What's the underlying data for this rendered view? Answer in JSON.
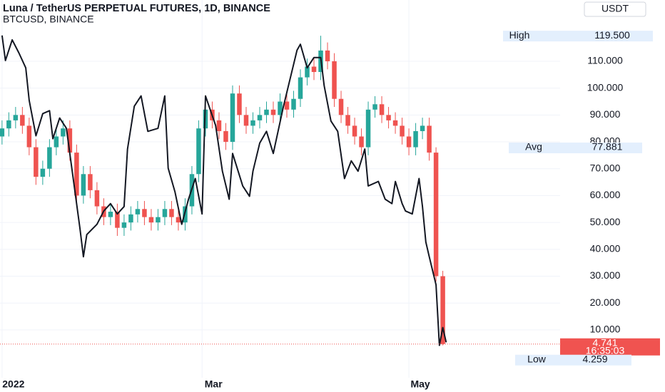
{
  "chart_data": {
    "type": "candlestick",
    "title": "Luna / TetherUS PERPETUAL FUTURES, 1D, BINANCE",
    "subtitle": "BTCUSD, BINANCE",
    "currency": "USDT",
    "x": [
      0,
      2,
      4,
      6,
      8,
      10,
      12,
      14,
      16,
      18,
      20,
      22,
      24,
      26,
      28,
      30,
      32,
      34,
      36,
      38,
      40,
      42,
      44,
      46,
      48,
      50,
      52,
      54,
      56,
      58,
      60,
      62,
      64,
      66,
      68,
      70,
      72,
      74,
      76,
      78,
      80,
      82,
      84,
      86,
      88,
      90,
      92,
      94,
      96,
      98,
      100,
      102,
      104,
      106,
      108,
      110,
      112,
      114,
      116,
      118,
      120,
      122,
      124,
      126,
      128,
      130
    ],
    "open": [
      82,
      85,
      88,
      90,
      86,
      78,
      67,
      70,
      78,
      82,
      85,
      76,
      60,
      68,
      62,
      56,
      52,
      54,
      48,
      50,
      53,
      55,
      52,
      50,
      52,
      55,
      52,
      50,
      56,
      68,
      85,
      92,
      88,
      84,
      80,
      98,
      90,
      86,
      88,
      90,
      92,
      90,
      95,
      92,
      96,
      104,
      108,
      106,
      114,
      110,
      96,
      90,
      86,
      82,
      78,
      92,
      94,
      90,
      88,
      86,
      82,
      78,
      84,
      86,
      76,
      30
    ],
    "high": [
      88,
      91,
      93,
      93,
      89,
      81,
      73,
      81,
      85,
      88,
      88,
      79,
      71,
      71,
      65,
      59,
      57,
      57,
      53,
      56,
      58,
      58,
      55,
      55,
      58,
      58,
      55,
      59,
      71,
      88,
      95,
      95,
      91,
      87,
      101,
      101,
      93,
      91,
      93,
      95,
      95,
      98,
      98,
      99,
      107,
      111,
      111,
      119.5,
      117,
      113,
      99,
      93,
      89,
      85,
      95,
      97,
      97,
      93,
      91,
      89,
      85,
      87,
      89,
      89,
      78,
      32
    ],
    "low": [
      79,
      82,
      85,
      83,
      75,
      64,
      64,
      67,
      75,
      79,
      73,
      57,
      57,
      59,
      53,
      49,
      49,
      45,
      45,
      47,
      50,
      49,
      47,
      47,
      49,
      49,
      47,
      47,
      53,
      65,
      82,
      85,
      81,
      77,
      77,
      87,
      83,
      83,
      85,
      87,
      87,
      87,
      89,
      89,
      93,
      101,
      103,
      103,
      107,
      93,
      87,
      83,
      79,
      75,
      75,
      89,
      87,
      85,
      83,
      79,
      75,
      75,
      81,
      73,
      28,
      4.259
    ],
    "close": [
      85,
      88,
      90,
      86,
      78,
      67,
      70,
      78,
      82,
      85,
      76,
      60,
      68,
      62,
      56,
      52,
      54,
      48,
      50,
      53,
      55,
      52,
      50,
      52,
      55,
      52,
      50,
      56,
      68,
      85,
      92,
      88,
      84,
      80,
      98,
      90,
      86,
      88,
      90,
      92,
      90,
      95,
      92,
      96,
      104,
      108,
      106,
      114,
      110,
      96,
      90,
      86,
      82,
      78,
      92,
      94,
      90,
      88,
      86,
      82,
      78,
      84,
      86,
      76,
      30,
      4.741
    ],
    "up_color": "#26a69a",
    "down_color": "#ef5350",
    "overlay": {
      "type": "line",
      "color": "#131722",
      "axis": "y2",
      "x": [
        0,
        1,
        3,
        5,
        7,
        8,
        10,
        12,
        14,
        15,
        17,
        19,
        21,
        23,
        24,
        25,
        28,
        30,
        32,
        34,
        36,
        37,
        39,
        41,
        43,
        46,
        48,
        49,
        51,
        53,
        55,
        57,
        59,
        60,
        63,
        65,
        67,
        68,
        71,
        73,
        74,
        76,
        78,
        80,
        83,
        85,
        87,
        88,
        90,
        92,
        94,
        95,
        97,
        99,
        101,
        103,
        105,
        107,
        108,
        111,
        113,
        115,
        116,
        118,
        119,
        121,
        123,
        124,
        125,
        126,
        128,
        129,
        130,
        131
      ],
      "values": [
        48000,
        46300,
        47700,
        46800,
        45800,
        43600,
        41200,
        42700,
        42900,
        41000,
        42400,
        41700,
        38300,
        34900,
        33000,
        34500,
        35200,
        36100,
        36600,
        35900,
        36400,
        40300,
        43200,
        43900,
        41500,
        41700,
        43900,
        39000,
        37400,
        35200,
        36900,
        38300,
        35900,
        43900,
        41900,
        38800,
        36900,
        40000,
        37800,
        37100,
        38800,
        40700,
        41500,
        40000,
        43200,
        45100,
        47000,
        47400,
        45800,
        46500,
        46500,
        44600,
        42200,
        41500,
        38300,
        39500,
        38800,
        40300,
        37800,
        38100,
        36900,
        36600,
        38100,
        36600,
        36100,
        35900,
        38300,
        36400,
        34000,
        33000,
        31100,
        27000,
        28200,
        27200
      ]
    },
    "xlim": [
      -0.6,
      164.6
    ],
    "ylim": [
      -7.8,
      132.8
    ],
    "y2lim": [
      24800,
      50400
    ],
    "xticks": [
      {
        "value": 0,
        "label": "2022"
      },
      {
        "value": 59,
        "label": "Mar"
      },
      {
        "value": 120,
        "label": "May"
      }
    ],
    "yticks": [
      {
        "value": 10,
        "label": "10.000"
      },
      {
        "value": 20,
        "label": "20.000"
      },
      {
        "value": 30,
        "label": "30.000"
      },
      {
        "value": 40,
        "label": "40.000"
      },
      {
        "value": 50,
        "label": "50.000"
      },
      {
        "value": 60,
        "label": "60.000"
      },
      {
        "value": 70,
        "label": "70.000"
      },
      {
        "value": 80,
        "label": "80.000"
      },
      {
        "value": 90,
        "label": "90.000"
      },
      {
        "value": 100,
        "label": "100.000"
      },
      {
        "value": 110,
        "label": "110.000"
      }
    ],
    "grid": true,
    "high_marker": {
      "name": "High",
      "value": 119.5,
      "label": "119.500"
    },
    "avg_marker": {
      "name": "Avg",
      "value": 77.881,
      "label": "77.881"
    },
    "low_marker": {
      "name": "Low",
      "value": 4.259,
      "label": "4.259"
    },
    "last_price": {
      "value": 4.741,
      "countdown": "16:35:03"
    }
  }
}
